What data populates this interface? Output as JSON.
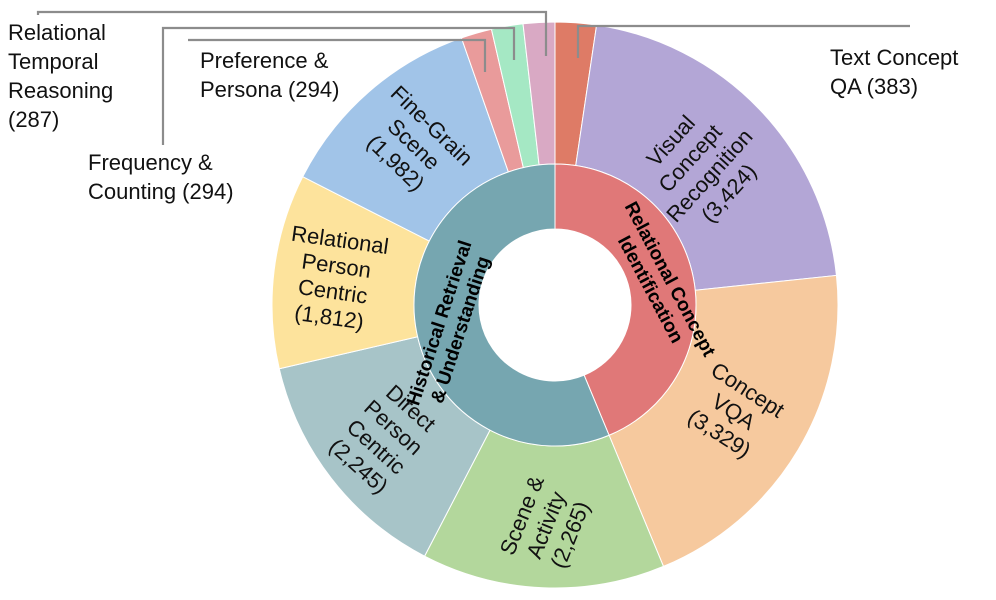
{
  "chart_data": {
    "type": "sunburst",
    "title": "",
    "inner": [
      {
        "name": "Relational Concept Identification",
        "lines": [
          "Relational Concept",
          "Identification"
        ],
        "color": "#e07878",
        "value": 7136
      },
      {
        "name": "Historical Retrieval & Understanding",
        "lines": [
          "Historical Retrieval",
          "& Understanding"
        ],
        "color": "#76a6b0",
        "value": 9473
      }
    ],
    "outer": [
      {
        "name": "Text Concept QA",
        "value": 383,
        "value_text": "(383)",
        "parent": "Relational Concept Identification",
        "color": "#de7b66",
        "lines": [],
        "external": [
          "Text Concept",
          "QA (383)"
        ]
      },
      {
        "name": "Visual Concept Recognition",
        "value": 3424,
        "value_text": "(3,424)",
        "parent": "Relational Concept Identification",
        "color": "#b3a6d6",
        "lines": [
          "Visual",
          "Concept",
          "Recognition",
          "(3,424)"
        ]
      },
      {
        "name": "Concept VQA",
        "value": 3329,
        "value_text": "(3,329)",
        "parent": "Relational Concept Identification",
        "color": "#f6c99e",
        "lines": [
          "Concept",
          "VQA",
          "(3,329)"
        ]
      },
      {
        "name": "Scene & Activity",
        "value": 2265,
        "value_text": "(2,265)",
        "parent": "Historical Retrieval & Understanding",
        "color": "#b3d79c",
        "lines": [
          "Scene &",
          "Activity",
          "(2,265)"
        ]
      },
      {
        "name": "Direct Person Centric",
        "value": 2245,
        "value_text": "(2,245)",
        "parent": "Historical Retrieval & Understanding",
        "color": "#a7c4c8",
        "lines": [
          "Direct",
          "Person",
          "Centric",
          "(2,245)"
        ]
      },
      {
        "name": "Relational Person Centric",
        "value": 1812,
        "value_text": "(1,812)",
        "parent": "Historical Retrieval & Understanding",
        "color": "#fde39c",
        "lines": [
          "Relational",
          "Person",
          "Centric",
          "(1,812)"
        ]
      },
      {
        "name": "Fine-Grain Scene",
        "value": 1982,
        "value_text": "(1,982)",
        "parent": "Historical Retrieval & Understanding",
        "color": "#a1c4e8",
        "lines": [
          "Fine-Grain",
          "Scene",
          "(1,982)"
        ]
      },
      {
        "name": "Relational Temporal Reasoning",
        "value": 287,
        "value_text": "(287)",
        "parent": "Historical Retrieval & Understanding",
        "color": "#e99b9b",
        "lines": [],
        "external": [
          "Relational",
          "Temporal",
          "Reasoning",
          "(287)"
        ]
      },
      {
        "name": "Frequency & Counting",
        "value": 294,
        "value_text": "(294)",
        "parent": "Historical Retrieval & Understanding",
        "color": "#a5e8c4",
        "lines": [],
        "external": [
          "Frequency &",
          "Counting (294)"
        ]
      },
      {
        "name": "Preference & Persona",
        "value": 294,
        "value_text": "(294)",
        "parent": "Historical Retrieval & Understanding",
        "color": "#d9a9c4",
        "lines": [],
        "external": [
          "Preference &",
          "Persona (294)"
        ]
      }
    ]
  }
}
